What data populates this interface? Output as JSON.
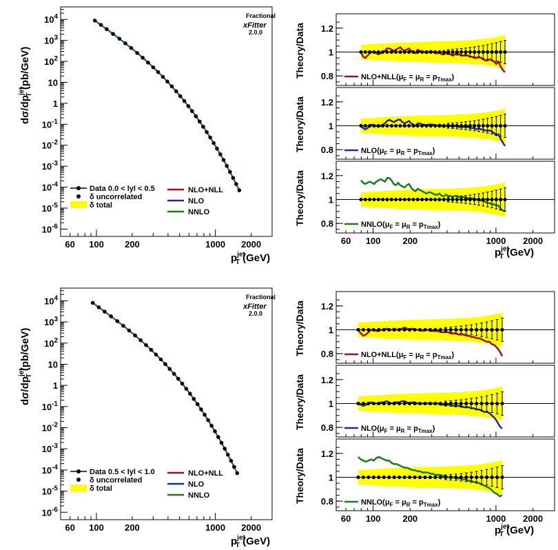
{
  "chart_data": [
    {
      "type": "line",
      "panel": "top-left",
      "ylabel": {
        "main": "dσ/dp",
        "sup": "jet",
        "sub": "T",
        "unit": " (pb/GeV)"
      },
      "xlabel": {
        "main": "p",
        "sup": "jet",
        "sub": "T",
        "unit": " (GeV)"
      },
      "xlog": true,
      "ylog": true,
      "xlim": [
        50,
        3000
      ],
      "ylim": [
        5e-07,
        50000.0
      ],
      "xticklabels": [
        "60",
        "100",
        "200",
        "1000",
        "2000"
      ],
      "yticklabels": [
        "10^-6",
        "10^-5",
        "10^-4",
        "10^-3",
        "10^-2",
        "10^-1",
        "1",
        "10",
        "10^2",
        "10^3",
        "10^4"
      ],
      "x": [
        97,
        103,
        109,
        115,
        122,
        130,
        138,
        147,
        156,
        165,
        175,
        185,
        196,
        208,
        220,
        232,
        245,
        258,
        272,
        286,
        300,
        314,
        330,
        346,
        362,
        378,
        395,
        412,
        430,
        449,
        468,
        487,
        507,
        527,
        548,
        570,
        592,
        614,
        637,
        661,
        686,
        711,
        737,
        763,
        790,
        818,
        846,
        875,
        905,
        935,
        967,
        1000,
        1032,
        1066,
        1101,
        1136,
        1172,
        1209,
        1248,
        1287,
        1327,
        1368,
        1410,
        1453,
        1497,
        1542,
        1588
      ],
      "series": [
        {
          "name": "Data 0.0 < |y| < 0.5",
          "log10_values_at_ends": [
            3.95,
            -4.15
          ]
        },
        {
          "name": "NLO+NLL"
        },
        {
          "name": "NLO"
        },
        {
          "name": "NNLO"
        }
      ],
      "legend": [
        "Data 0.0 < lyl < 0.5",
        "δ uncorrelated",
        "δ total",
        "NLO+NLL",
        "NLO",
        "NNLO"
      ],
      "logo": {
        "name": "xFitter",
        "sub": "Fractional",
        "version": "2.0.0"
      }
    },
    {
      "type": "line",
      "panel": "bottom-left",
      "ylabel": {
        "main": "dσ/dp",
        "sup": "jet",
        "sub": "T",
        "unit": " (pb/GeV)"
      },
      "xlabel": {
        "main": "p",
        "sup": "jet",
        "sub": "T",
        "unit": " (GeV)"
      },
      "xlog": true,
      "ylog": true,
      "xlim": [
        50,
        3000
      ],
      "ylim": [
        5e-07,
        50000.0
      ],
      "xticklabels": [
        "60",
        "100",
        "200",
        "1000",
        "2000"
      ],
      "yticklabels": [
        "10^-6",
        "10^-5",
        "10^-4",
        "10^-3",
        "10^-2",
        "10^-1",
        "1",
        "10",
        "10^2",
        "10^3",
        "10^4"
      ],
      "series": [
        {
          "name": "Data 0.5 < |y| < 1.0",
          "log10_values_at_ends": [
            3.9,
            -4.15
          ]
        },
        {
          "name": "NLO+NLL"
        },
        {
          "name": "NLO"
        },
        {
          "name": "NNLO"
        }
      ],
      "legend": [
        "Data 0.5 < lyl < 1.0",
        "δ uncorrelated",
        "δ total",
        "NLO+NLL",
        "NLO",
        "NNLO"
      ],
      "logo": {
        "name": "xFitter",
        "sub": "Fractional",
        "version": "2.0.0"
      }
    }
  ],
  "ratio_panels": {
    "ylabel": "Theory/Data",
    "yticklabels": [
      "0.8",
      "1",
      "1.2"
    ],
    "xticklabels": [
      "60",
      "100",
      "200",
      "1000",
      "2000"
    ],
    "xlabel": {
      "main": "p",
      "sup": "jet",
      "sub": "T",
      "unit": " (GeV)"
    },
    "top": [
      {
        "label": "NLO+NLL(μ",
        "sub1": "F",
        "mid": " = μ",
        "sub2": "R",
        "tail": " = p",
        "sub3": "Tmax",
        "close": ")",
        "color": "#a01010",
        "values": [
          1.0,
          0.96,
          0.95,
          0.97,
          0.99,
          1.0,
          1.0,
          0.99,
          0.98,
          0.99,
          1.0,
          1.01,
          1.03,
          1.03,
          1.02,
          1.01,
          1.02,
          1.03,
          1.04,
          1.02,
          1.01,
          1.02,
          1.03,
          1.01,
          1.0,
          0.99,
          1.02,
          1.01,
          1.0,
          1.0,
          0.99,
          1.0,
          1.01,
          1.0,
          0.99,
          0.99,
          1.0,
          0.98,
          0.98,
          0.99,
          0.99,
          0.98,
          0.97,
          0.98,
          0.99,
          0.98,
          0.97,
          0.97,
          0.98,
          0.97,
          0.96,
          0.96,
          0.95,
          0.95,
          0.96,
          0.95,
          0.94,
          0.93,
          0.93,
          0.94,
          0.93,
          0.92,
          0.9,
          0.92,
          0.88,
          0.85,
          0.83
        ]
      },
      {
        "label": "NLO(μ",
        "sub1": "F",
        "mid": " = μ",
        "sub2": "R",
        "tail": " = p",
        "sub3": "Tmax",
        "close": ")",
        "color": "#1a2a9a",
        "values": [
          1.0,
          0.98,
          0.97,
          0.98,
          1.0,
          1.01,
          1.0,
          1.0,
          0.99,
          1.0,
          1.01,
          1.02,
          1.04,
          1.05,
          1.04,
          1.03,
          1.04,
          1.05,
          1.05,
          1.03,
          1.02,
          1.03,
          1.04,
          1.02,
          1.01,
          1.0,
          1.02,
          1.02,
          1.01,
          1.01,
          1.0,
          1.01,
          1.01,
          1.01,
          1.0,
          1.0,
          1.01,
          1.0,
          0.99,
          1.0,
          1.0,
          1.0,
          0.99,
          1.0,
          1.0,
          0.99,
          0.99,
          0.99,
          0.99,
          0.99,
          0.98,
          0.98,
          0.98,
          0.97,
          0.98,
          0.97,
          0.97,
          0.96,
          0.96,
          0.96,
          0.95,
          0.94,
          0.92,
          0.93,
          0.89,
          0.86,
          0.83
        ]
      },
      {
        "label": "NNLO(μ",
        "sub1": "F",
        "mid": " = μ",
        "sub2": "R",
        "tail": " = p",
        "sub3": "Tmax",
        "close": ")",
        "color": "#1a7a1a",
        "values": [
          1.16,
          1.14,
          1.13,
          1.14,
          1.15,
          1.14,
          1.13,
          1.15,
          1.16,
          1.17,
          1.16,
          1.15,
          1.18,
          1.18,
          1.16,
          1.13,
          1.12,
          1.14,
          1.12,
          1.11,
          1.1,
          1.12,
          1.13,
          1.1,
          1.08,
          1.07,
          1.09,
          1.08,
          1.07,
          1.06,
          1.05,
          1.06,
          1.06,
          1.05,
          1.04,
          1.04,
          1.05,
          1.03,
          1.03,
          1.04,
          1.03,
          1.03,
          1.02,
          1.03,
          1.03,
          1.02,
          1.02,
          1.02,
          1.02,
          1.01,
          1.01,
          1.01,
          1.0,
          1.0,
          1.0,
          0.99,
          0.99,
          0.98,
          0.97,
          0.97,
          0.96,
          0.96,
          0.95,
          0.95,
          0.92,
          0.91,
          0.9
        ]
      }
    ],
    "bottom": [
      {
        "label": "NLO+NLL(μ",
        "sub1": "F",
        "mid": " = μ",
        "sub2": "R",
        "tail": " = p",
        "sub3": "Tmax",
        "close": ")",
        "color": "#a01010",
        "values": [
          1.0,
          0.97,
          0.95,
          0.96,
          0.98,
          1.0,
          1.0,
          0.99,
          0.99,
          1.0,
          1.0,
          1.01,
          1.0,
          1.0,
          1.01,
          1.0,
          1.0,
          1.01,
          1.02,
          1.01,
          1.0,
          1.01,
          1.0,
          1.0,
          1.0,
          0.99,
          1.0,
          1.0,
          0.99,
          0.99,
          0.99,
          0.99,
          0.98,
          0.98,
          0.98,
          0.98,
          0.97,
          0.97,
          0.97,
          0.96,
          0.96,
          0.96,
          0.95,
          0.95,
          0.94,
          0.94,
          0.93,
          0.93,
          0.92,
          0.91,
          0.9,
          0.9,
          0.88,
          0.87,
          0.85,
          0.82,
          0.78
        ]
      },
      {
        "label": "NLO(μ",
        "sub1": "F",
        "mid": " = μ",
        "sub2": "R",
        "tail": " = p",
        "sub3": "Tmax",
        "close": ")",
        "color": "#1a2a9a",
        "values": [
          1.0,
          0.99,
          0.98,
          0.99,
          1.0,
          1.01,
          1.0,
          1.0,
          1.0,
          1.01,
          1.01,
          1.02,
          1.01,
          1.0,
          1.01,
          1.01,
          1.01,
          1.02,
          1.02,
          1.01,
          1.0,
          1.01,
          1.01,
          1.0,
          1.0,
          1.0,
          1.0,
          1.0,
          1.0,
          1.0,
          1.0,
          1.0,
          0.99,
          0.99,
          0.99,
          0.99,
          0.99,
          0.98,
          0.98,
          0.98,
          0.98,
          0.97,
          0.97,
          0.97,
          0.96,
          0.96,
          0.95,
          0.95,
          0.94,
          0.93,
          0.93,
          0.92,
          0.9,
          0.88,
          0.85,
          0.81,
          0.79
        ]
      },
      {
        "label": "NNLO(μ",
        "sub1": "F",
        "mid": " = μ",
        "sub2": "R",
        "tail": " = p",
        "sub3": "Tmax",
        "close": ")",
        "color": "#1a7a1a",
        "values": [
          1.17,
          1.15,
          1.14,
          1.13,
          1.14,
          1.15,
          1.14,
          1.16,
          1.17,
          1.16,
          1.15,
          1.14,
          1.14,
          1.12,
          1.11,
          1.11,
          1.1,
          1.09,
          1.08,
          1.08,
          1.07,
          1.06,
          1.06,
          1.05,
          1.05,
          1.04,
          1.04,
          1.04,
          1.03,
          1.03,
          1.02,
          1.02,
          1.02,
          1.01,
          1.01,
          1.0,
          1.0,
          1.0,
          0.99,
          0.99,
          0.99,
          0.98,
          0.98,
          0.97,
          0.97,
          0.96,
          0.96,
          0.95,
          0.94,
          0.93,
          0.92,
          0.91,
          0.89,
          0.87,
          0.86,
          0.84,
          0.85
        ]
      }
    ]
  },
  "colors": {
    "nlonll": "#a01010",
    "nlo": "#1a2a9a",
    "nnlo": "#1a7a1a",
    "band": "#ffff00",
    "data": "#000000"
  }
}
